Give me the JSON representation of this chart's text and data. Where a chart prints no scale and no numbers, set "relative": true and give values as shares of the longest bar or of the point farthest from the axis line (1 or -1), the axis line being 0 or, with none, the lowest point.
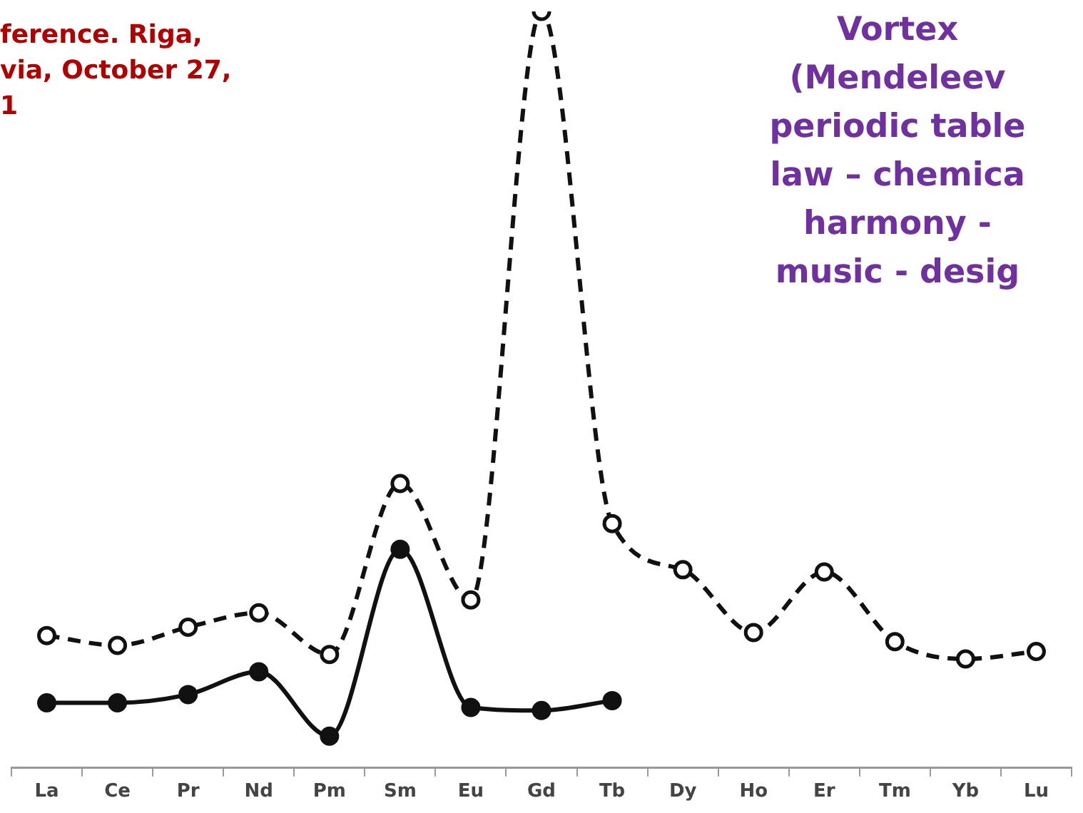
{
  "chart_data": {
    "type": "line",
    "relative": true,
    "categories": [
      "La",
      "Ce",
      "Pr",
      "Nd",
      "Pm",
      "Sm",
      "Eu",
      "Gd",
      "Tb",
      "Dy",
      "Ho",
      "Er",
      "Tm",
      "Yb",
      "Lu"
    ],
    "series": [
      {
        "color": "#111111",
        "line_style": "dashed",
        "values": [
          0.175,
          0.162,
          0.186,
          0.205,
          0.15,
          0.376,
          0.222,
          1,
          0.323,
          0.262,
          0.179,
          0.259,
          0.167,
          0.144,
          0.154
        ]
      },
      {
        "color": "#111111",
        "line_style": "solid",
        "values": [
          0.086,
          0.086,
          0.097,
          0.127,
          0.042,
          0.289,
          0.08,
          0.076,
          0.089,
          null,
          null,
          null,
          null,
          null,
          null
        ]
      }
    ],
    "marker": "circle",
    "grid": false,
    "legend": false,
    "annotations": [
      "ference. Riga,\nvia, October 27,\n1",
      "Vortex\n(Mendeleev\nperiodic table\nlaw – chemica\nharmony -\nmusic - desig"
    ]
  }
}
